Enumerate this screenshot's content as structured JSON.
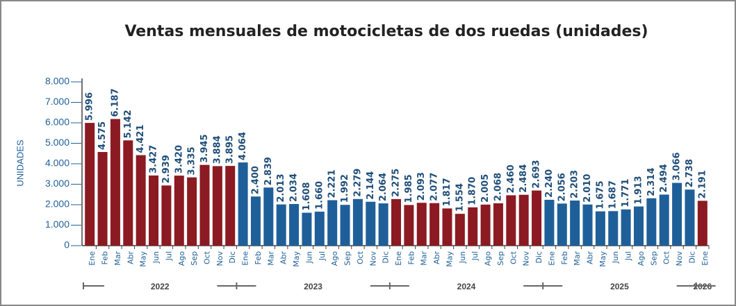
{
  "chart_data": {
    "type": "bar",
    "title": "Ventas mensuales de motocicletas de dos ruedas (unidades)",
    "y_label": "UNIDADES",
    "ylim": [
      0,
      8000
    ],
    "yticks": [
      0,
      {
        "value": 1000,
        "label": "1.000"
      },
      {
        "value": 2000,
        "label": "2.000"
      },
      {
        "value": 3000,
        "label": "3.000"
      },
      {
        "value": 4000,
        "label": "4.000"
      },
      {
        "value": 5000,
        "label": "5.000"
      },
      {
        "value": 6000,
        "label": "6.000"
      },
      {
        "value": 7000,
        "label": "7.000"
      },
      {
        "value": 8000,
        "label": "8.000"
      }
    ],
    "series": [
      {
        "name": "2022",
        "color": "#8b1a22",
        "categories": [
          "Ene",
          "Feb",
          "Mar",
          "Abr",
          "May",
          "Jun",
          "Jul",
          "Ago",
          "Sep",
          "Oct",
          "Nov",
          "Dic"
        ],
        "values": [
          5996,
          4575,
          6187,
          5142,
          4421,
          3427,
          2939,
          3420,
          3335,
          3945,
          3884,
          3895
        ],
        "value_labels": [
          "5.996",
          "4.575",
          "6.187",
          "5.142",
          "4.421",
          "3.427",
          "2.939",
          "3.420",
          "3.335",
          "3.945",
          "3.884",
          "3.895"
        ]
      },
      {
        "name": "2023",
        "color": "#1f5f99",
        "categories": [
          "Ene",
          "Feb",
          "Mar",
          "Abr",
          "May",
          "Jun",
          "Jul",
          "Ago",
          "Sep",
          "Oct",
          "Nov",
          "Dic"
        ],
        "values": [
          4064,
          2400,
          2839,
          2013,
          2034,
          1608,
          1660,
          2221,
          1992,
          2279,
          2144,
          2064
        ],
        "value_labels": [
          "4.064",
          "2.400",
          "2.839",
          "2.013",
          "2.034",
          "1.608",
          "1.660",
          "2.221",
          "1.992",
          "2.279",
          "2.144",
          "2.064"
        ]
      },
      {
        "name": "2024",
        "color": "#8b1a22",
        "categories": [
          "Ene",
          "Feb",
          "Mar",
          "Abr",
          "May",
          "Jun",
          "Jul",
          "Ago",
          "Sep",
          "Oct",
          "Nov",
          "Dic"
        ],
        "values": [
          2275,
          1985,
          2093,
          2077,
          1817,
          1554,
          1870,
          2005,
          2068,
          2460,
          2484,
          2693
        ],
        "value_labels": [
          "2.275",
          "1.985",
          "2.093",
          "2.077",
          "1.817",
          "1.554",
          "1.870",
          "2.005",
          "2.068",
          "2.460",
          "2.484",
          "2.693"
        ]
      },
      {
        "name": "2025",
        "color": "#1f5f99",
        "categories": [
          "Ene",
          "Feb",
          "Mar",
          "Abr",
          "May",
          "Jun",
          "Jul",
          "Ago",
          "Sep",
          "Oct",
          "Nov",
          "Dic"
        ],
        "values": [
          2240,
          2056,
          2203,
          2010,
          1675,
          1687,
          1771,
          1913,
          2314,
          2494,
          3066,
          2738
        ],
        "value_labels": [
          "2.240",
          "2.056",
          "2.203",
          "2.010",
          "1.675",
          "1.687",
          "1.771",
          "1.913",
          "2.314",
          "2.494",
          "3.066",
          "2.738"
        ]
      },
      {
        "name": "2026",
        "color": "#8b1a22",
        "categories": [
          "Ene"
        ],
        "values": [
          2191
        ],
        "value_labels": [
          "2.191"
        ]
      }
    ]
  }
}
